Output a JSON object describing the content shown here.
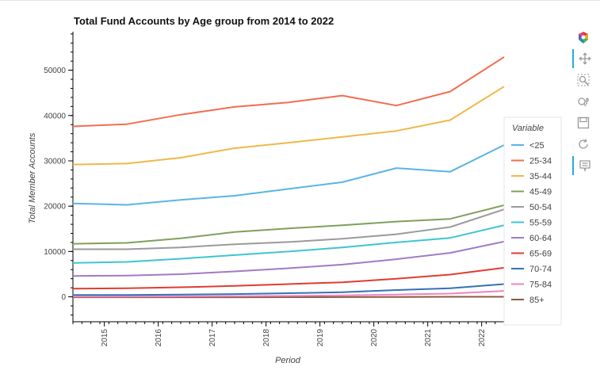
{
  "chart_data": {
    "type": "line",
    "title": "Total Fund Accounts by Age group from 2014 to 2022",
    "xlabel": "Period",
    "ylabel": "Total Member Accounts",
    "x": [
      "2014-06",
      "2015-06",
      "2016-06",
      "2017-06",
      "2018-06",
      "2019-06",
      "2020-06",
      "2021-06",
      "2022-06"
    ],
    "x_tick_labels": [
      "2015",
      "2016",
      "2017",
      "2018",
      "2019",
      "2020",
      "2021",
      "2022"
    ],
    "y_ticks": [
      0,
      10000,
      20000,
      30000,
      40000,
      50000
    ],
    "xlim": [
      "2014-06",
      "2022-06"
    ],
    "ylim": [
      -5500,
      58500
    ],
    "grid": false,
    "legend_title": "Variable",
    "legend_position": "right",
    "series": [
      {
        "name": "<25",
        "color": "#5ab4e5",
        "values": [
          20600,
          20300,
          21400,
          22300,
          23800,
          25300,
          28400,
          27600,
          33500
        ]
      },
      {
        "name": "25-34",
        "color": "#f26d50",
        "values": [
          37600,
          38100,
          40200,
          41900,
          42900,
          44400,
          42200,
          45300,
          52900
        ]
      },
      {
        "name": "35-44",
        "color": "#f0b84a",
        "values": [
          29200,
          29400,
          30700,
          32800,
          34000,
          35300,
          36600,
          39000,
          46400
        ]
      },
      {
        "name": "45-49",
        "color": "#7fa05a",
        "values": [
          11700,
          11900,
          12900,
          14300,
          15100,
          15800,
          16600,
          17200,
          20200
        ]
      },
      {
        "name": "50-54",
        "color": "#9a9a9a",
        "values": [
          10500,
          10500,
          10900,
          11600,
          12100,
          12800,
          13800,
          15400,
          19300
        ]
      },
      {
        "name": "55-59",
        "color": "#3cc5d2",
        "values": [
          7500,
          7700,
          8400,
          9200,
          10000,
          10900,
          12000,
          13000,
          15800
        ]
      },
      {
        "name": "60-64",
        "color": "#a07ac8",
        "values": [
          4600,
          4700,
          5000,
          5600,
          6300,
          7100,
          8300,
          9700,
          12200
        ]
      },
      {
        "name": "65-69",
        "color": "#e03c31",
        "values": [
          1800,
          1900,
          2100,
          2400,
          2800,
          3200,
          4000,
          4900,
          6400
        ]
      },
      {
        "name": "70-74",
        "color": "#3272b8",
        "values": [
          400,
          400,
          500,
          600,
          800,
          1000,
          1500,
          1900,
          2800
        ]
      },
      {
        "name": "75-84",
        "color": "#ef82c3",
        "values": [
          50,
          50,
          100,
          150,
          200,
          300,
          500,
          700,
          1300
        ]
      },
      {
        "name": "85+",
        "color": "#8c5a3c",
        "values": [
          -100,
          -100,
          -100,
          -100,
          -80,
          -60,
          -50,
          0,
          0
        ]
      }
    ]
  },
  "toolbar": {
    "tools": [
      {
        "name": "bokeh-logo",
        "icon": "bokeh-logo-icon"
      },
      {
        "name": "pan",
        "icon": "pan-icon"
      },
      {
        "name": "box-zoom",
        "icon": "box-zoom-icon"
      },
      {
        "name": "wheel-zoom",
        "icon": "wheel-zoom-icon"
      },
      {
        "name": "save",
        "icon": "save-icon"
      },
      {
        "name": "reset",
        "icon": "reset-icon"
      },
      {
        "name": "hover",
        "icon": "hover-icon"
      }
    ]
  }
}
